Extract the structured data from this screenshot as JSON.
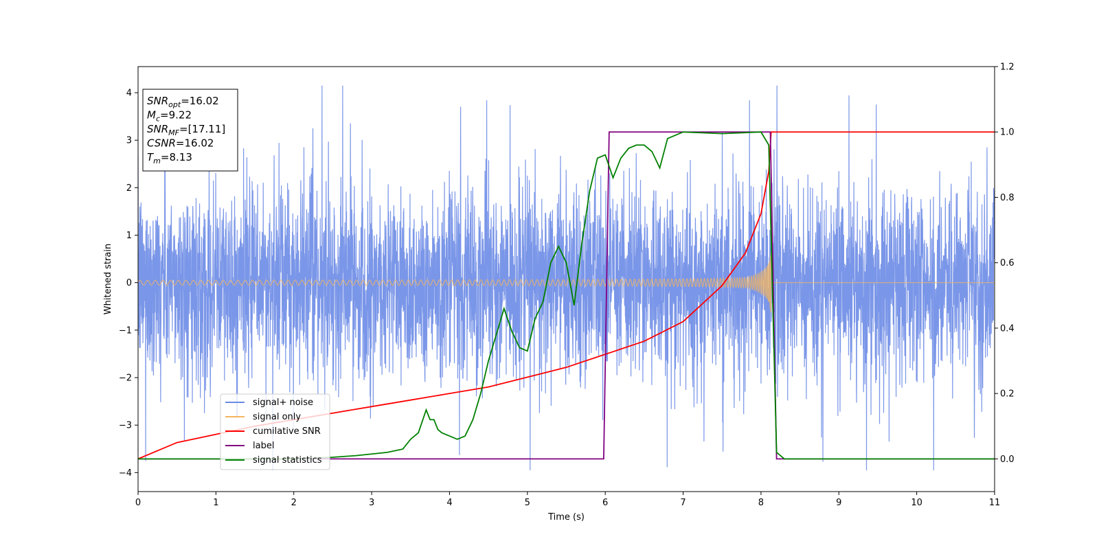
{
  "chart_data": {
    "type": "line",
    "xlabel": "Time (s)",
    "ylabel": "Whitened strain",
    "xlim": [
      0,
      11
    ],
    "ylim_left": [
      -4.4,
      4.55
    ],
    "ylim_right": [
      -0.1,
      1.2
    ],
    "x_ticks": [
      "0",
      "1",
      "2",
      "3",
      "4",
      "5",
      "6",
      "7",
      "8",
      "9",
      "10",
      "11"
    ],
    "y_ticks_left": [
      "−4",
      "−3",
      "−2",
      "−1",
      "0",
      "1",
      "2",
      "3",
      "4"
    ],
    "y_ticks_right": [
      "0.0",
      "0.2",
      "0.4",
      "0.6",
      "0.8",
      "1.0",
      "1.2"
    ],
    "legend_position": "lower-left",
    "grid": false,
    "info_box": [
      {
        "label": "SNR",
        "sub": "opt",
        "value": "=16.02"
      },
      {
        "label": "M",
        "sub": "c",
        "value": "=9.22"
      },
      {
        "label": "SNR",
        "sub": "MF",
        "value": "=[17.11]"
      },
      {
        "label": "CSNR",
        "sub": "",
        "value": "=16.02"
      },
      {
        "label": "T",
        "sub": "m",
        "value": "=8.13"
      }
    ],
    "series": [
      {
        "name": "signal+ noise",
        "color": "#6b8be6",
        "axis": "left",
        "description_kind": "noise",
        "noise_amplitude": 1.5,
        "noise_duration": [
          0,
          11
        ]
      },
      {
        "name": "signal only",
        "color": "#f5b55f",
        "axis": "left",
        "description_kind": "chirp",
        "merger_time": 8.13,
        "peak_amplitude": 1.3,
        "start_amplitude": 0.05
      },
      {
        "name": "cumilative SNR",
        "color": "#ff0000",
        "axis": "right",
        "x": [
          0,
          0.5,
          1,
          1.5,
          2,
          2.5,
          3,
          3.5,
          4,
          4.5,
          5,
          5.5,
          6,
          6.5,
          7,
          7.5,
          7.8,
          8.0,
          8.1,
          8.13,
          11
        ],
        "y": [
          0.0,
          0.05,
          0.075,
          0.1,
          0.12,
          0.14,
          0.16,
          0.18,
          0.2,
          0.22,
          0.25,
          0.28,
          0.32,
          0.36,
          0.42,
          0.53,
          0.63,
          0.75,
          0.88,
          1.0,
          1.0
        ]
      },
      {
        "name": "label",
        "color": "#800080",
        "axis": "right",
        "x": [
          0,
          5.98,
          6.05,
          8.12,
          8.2,
          11
        ],
        "y": [
          0,
          0,
          1,
          1,
          0,
          0
        ]
      },
      {
        "name": "signal statistics",
        "color": "#008000",
        "axis": "right",
        "x": [
          0,
          1,
          2,
          2.5,
          2.8,
          3.0,
          3.2,
          3.4,
          3.5,
          3.6,
          3.7,
          3.75,
          3.8,
          3.85,
          3.9,
          4.0,
          4.1,
          4.2,
          4.3,
          4.4,
          4.5,
          4.6,
          4.7,
          4.8,
          4.9,
          5.0,
          5.1,
          5.2,
          5.3,
          5.4,
          5.5,
          5.6,
          5.7,
          5.8,
          5.9,
          6.0,
          6.1,
          6.2,
          6.3,
          6.4,
          6.5,
          6.6,
          6.7,
          6.8,
          7.0,
          7.5,
          8.0,
          8.1,
          8.2,
          8.3,
          11
        ],
        "y": [
          0,
          0,
          0,
          0.005,
          0.01,
          0.015,
          0.02,
          0.03,
          0.06,
          0.08,
          0.15,
          0.12,
          0.12,
          0.09,
          0.08,
          0.07,
          0.06,
          0.07,
          0.12,
          0.2,
          0.3,
          0.38,
          0.46,
          0.39,
          0.34,
          0.33,
          0.43,
          0.48,
          0.6,
          0.65,
          0.6,
          0.47,
          0.66,
          0.82,
          0.92,
          0.93,
          0.86,
          0.92,
          0.95,
          0.96,
          0.96,
          0.94,
          0.89,
          0.98,
          1.0,
          0.995,
          1.0,
          0.96,
          0.02,
          0.0,
          0.0
        ]
      }
    ]
  }
}
